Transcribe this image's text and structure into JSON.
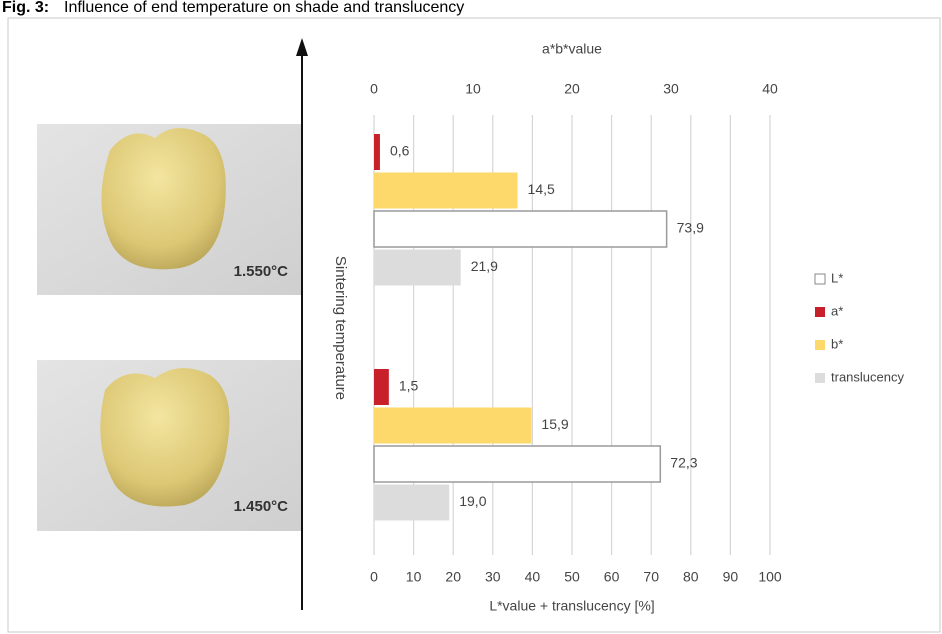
{
  "chart_data": {
    "type": "bar",
    "orientation": "horizontal",
    "title_label": "Fig. 3:",
    "title": "Influence of end temperature on shade and translucency",
    "ylabel": "Sintering temperature",
    "xlabel": "L*value + translucency [%]",
    "x2label": "a*b*value",
    "categories": [
      "1.550°C",
      "1.450°C"
    ],
    "xlim": [
      0,
      100
    ],
    "xticks": [
      0,
      10,
      20,
      30,
      40,
      50,
      60,
      70,
      80,
      90,
      100
    ],
    "x2lim": [
      0,
      40
    ],
    "x2ticks": [
      0,
      10,
      20,
      30,
      40
    ],
    "grid": true,
    "legend": "right",
    "series": [
      {
        "name": "L*",
        "color": "#ffffff",
        "values": [
          73.9,
          72.3
        ],
        "value_labels": [
          "73,9",
          "72,3"
        ]
      },
      {
        "name": "a*",
        "color": "#c8202a",
        "axis": "x2",
        "values": [
          0.6,
          1.5
        ],
        "value_labels": [
          "0,6",
          "1,5"
        ]
      },
      {
        "name": "b*",
        "color": "#fdd96b",
        "axis": "x2",
        "values": [
          14.5,
          15.9
        ],
        "value_labels": [
          "14,5",
          "15,9"
        ]
      },
      {
        "name": "translucency",
        "color": "#dcdcdc",
        "values": [
          21.9,
          19.0
        ],
        "value_labels": [
          "21,9",
          "19,0"
        ]
      }
    ]
  }
}
